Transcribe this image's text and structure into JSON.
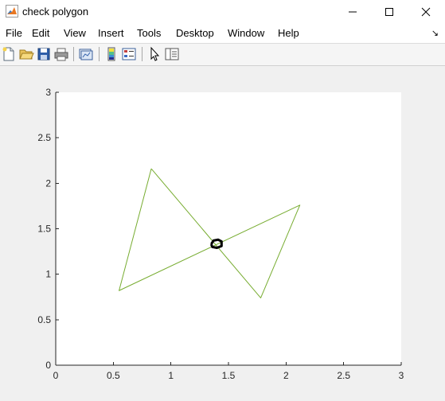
{
  "window": {
    "title": "check polygon",
    "minimize_icon": "minimize-icon",
    "maximize_icon": "maximize-icon",
    "close_icon": "close-icon"
  },
  "menu": {
    "items": [
      "File",
      "Edit",
      "View",
      "Insert",
      "Tools",
      "Desktop",
      "Window",
      "Help"
    ],
    "overflow_icon": "dock-arrow-icon"
  },
  "toolbar": {
    "buttons": [
      {
        "name": "new-figure-button",
        "icon": "new-file-icon"
      },
      {
        "name": "open-file-button",
        "icon": "open-folder-icon"
      },
      {
        "name": "save-figure-button",
        "icon": "save-icon"
      },
      {
        "name": "print-figure-button",
        "icon": "print-icon"
      },
      {
        "name": "link-plot-button",
        "icon": "link-plot-icon"
      },
      {
        "name": "insert-colorbar-button",
        "icon": "colorbar-icon"
      },
      {
        "name": "insert-legend-button",
        "icon": "legend-icon"
      },
      {
        "name": "edit-plot-button",
        "icon": "pointer-arrow-icon"
      },
      {
        "name": "property-inspector-button",
        "icon": "property-inspector-icon"
      }
    ]
  },
  "chart_data": {
    "type": "line",
    "title": "",
    "xlabel": "",
    "ylabel": "",
    "xlim": [
      0,
      3
    ],
    "ylim": [
      0,
      3
    ],
    "x_ticks": [
      "0",
      "0.5",
      "1",
      "1.5",
      "2",
      "2.5",
      "3"
    ],
    "y_ticks": [
      "0",
      "0.5",
      "1",
      "1.5",
      "2",
      "2.5",
      "3"
    ],
    "grid": false,
    "legend": "none",
    "series": [
      {
        "color": "#77ac30",
        "points": [
          [
            0.83,
            2.16
          ],
          [
            1.78,
            0.74
          ],
          [
            2.12,
            1.76
          ],
          [
            0.55,
            0.82
          ],
          [
            0.83,
            2.16
          ]
        ]
      },
      {
        "color": "#000000",
        "points": [
          [
            1.35,
            1.33
          ],
          [
            1.37,
            1.37
          ],
          [
            1.41,
            1.38
          ],
          [
            1.44,
            1.36
          ],
          [
            1.44,
            1.31
          ],
          [
            1.4,
            1.29
          ],
          [
            1.36,
            1.3
          ],
          [
            1.35,
            1.33
          ]
        ]
      }
    ]
  }
}
